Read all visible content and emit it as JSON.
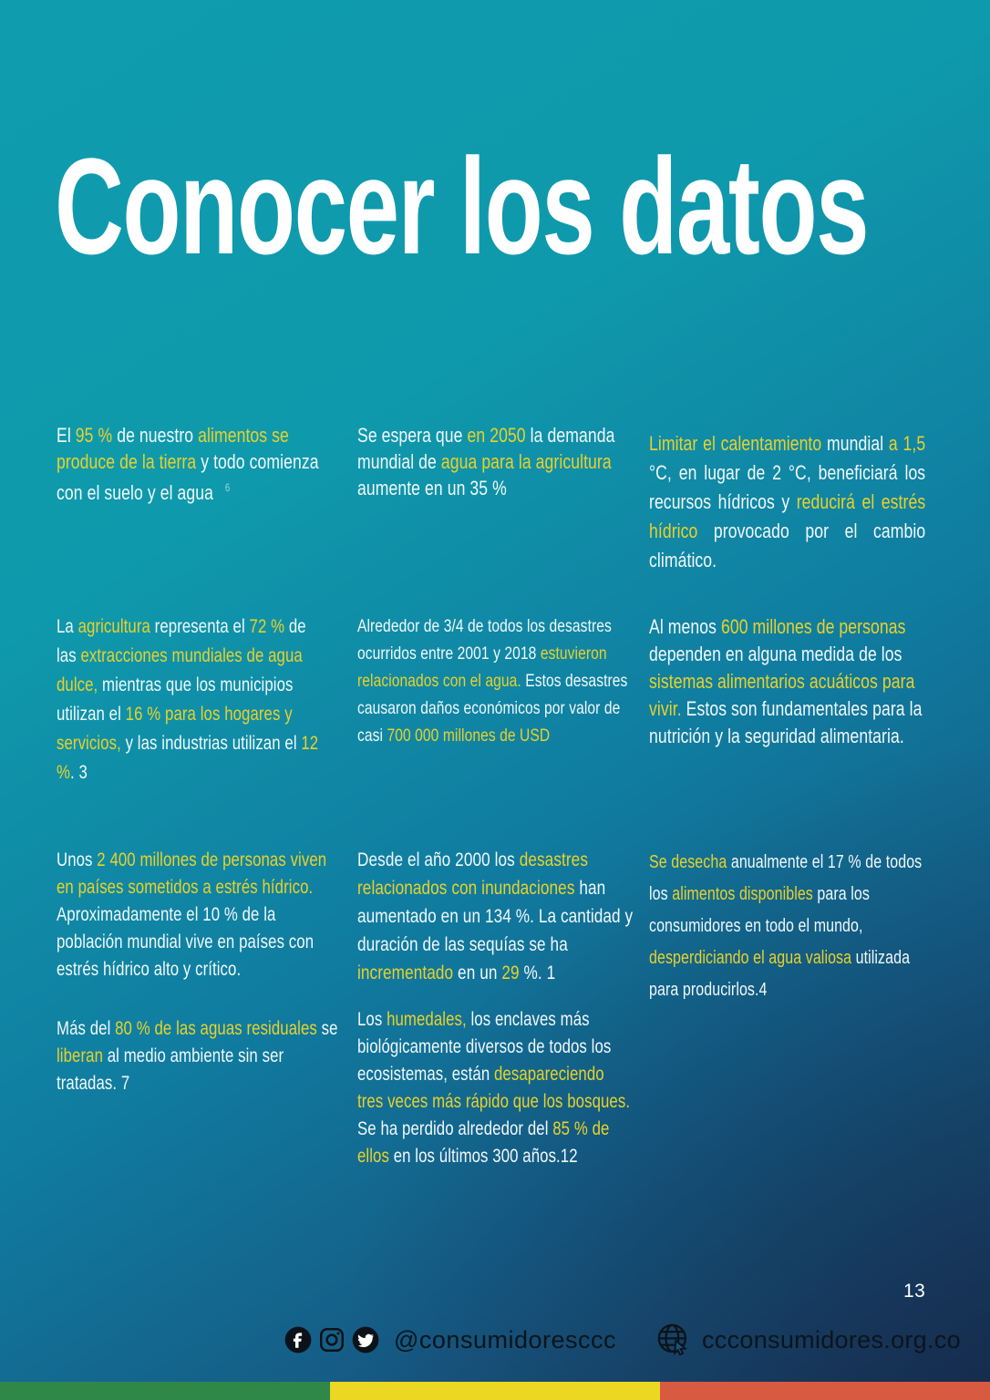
{
  "page": {
    "title": "Conocer los datos",
    "page_number": "13"
  },
  "colors": {
    "highlight": "#e8d22b",
    "bg_top": "#0f9cae",
    "bg_bottom": "#1e3c62",
    "stripe_green": "#2f8748",
    "stripe_yellow": "#ecd723",
    "stripe_orange": "#d85a40"
  },
  "facts": [
    {
      "name": "food-from-land",
      "segments": [
        {
          "t": "El ",
          "h": false
        },
        {
          "t": "95 %",
          "h": true
        },
        {
          "t": " de nuestro ",
          "h": false
        },
        {
          "t": "alimentos se produce de la tierra",
          "h": true
        },
        {
          "t": " y todo comienza con el suelo y el agua",
          "h": false
        },
        {
          "t": "6",
          "h": false,
          "sup": true
        }
      ]
    },
    {
      "name": "water-demand-2050",
      "segments": [
        {
          "t": "Se espera que ",
          "h": false
        },
        {
          "t": "en 2050",
          "h": true
        },
        {
          "t": " la demanda mundial de ",
          "h": false
        },
        {
          "t": "agua para la agricultura",
          "h": true
        },
        {
          "t": " aumente en un 35 %",
          "h": false
        }
      ]
    },
    {
      "name": "limit-warming",
      "segments": [
        {
          "t": "Limitar el calentamiento",
          "h": true
        },
        {
          "t": " mundial ",
          "h": false
        },
        {
          "t": "a 1,5",
          "h": true
        },
        {
          "t": " °C, en lugar de 2 °C, beneficiará los recursos hídricos y ",
          "h": false
        },
        {
          "t": "reducirá el estrés hídrico",
          "h": true
        },
        {
          "t": " provocado por el cambio climático.",
          "h": false
        }
      ]
    },
    {
      "name": "agriculture-withdrawals",
      "segments": [
        {
          "t": "La ",
          "h": false
        },
        {
          "t": "agricultura",
          "h": true
        },
        {
          "t": " representa el ",
          "h": false
        },
        {
          "t": "72 %",
          "h": true
        },
        {
          "t": " de las ",
          "h": false
        },
        {
          "t": "extracciones mundiales de agua dulce,",
          "h": true
        },
        {
          "t": " mientras que los municipios utilizan el ",
          "h": false
        },
        {
          "t": "16 % para los hogares y servicios,",
          "h": true
        },
        {
          "t": " y las industrias utilizan el ",
          "h": false
        },
        {
          "t": "12 %",
          "h": true
        },
        {
          "t": ". 3",
          "h": false
        }
      ]
    },
    {
      "name": "water-related-disasters",
      "segments": [
        {
          "t": "Alrededor de 3/4 de todos los desastres ocurridos entre 2001 y 2018 ",
          "h": false
        },
        {
          "t": "estuvieron relacionados con el agua.",
          "h": true
        },
        {
          "t": " Estos desastres causaron daños económicos por valor de casi ",
          "h": false
        },
        {
          "t": "700 000 millones de USD",
          "h": true
        }
      ]
    },
    {
      "name": "aquatic-food-systems",
      "segments": [
        {
          "t": "Al menos ",
          "h": false
        },
        {
          "t": "600 millones de personas",
          "h": true
        },
        {
          "t": " dependen en alguna medida de los ",
          "h": false
        },
        {
          "t": "sistemas alimentarios acuáticos para vivir.",
          "h": true
        },
        {
          "t": " Estos son fundamentales para la nutrición y la seguridad alimentaria.",
          "h": false
        }
      ]
    },
    {
      "name": "water-stress-population",
      "segments": [
        {
          "t": "Unos ",
          "h": false
        },
        {
          "t": "2 400 millones de personas viven en países sometidos a estrés hídrico.",
          "h": true
        },
        {
          "t": " Aproximadamente el 10 % de la población mundial vive en países con estrés hídrico alto y crítico.",
          "h": false
        }
      ]
    },
    {
      "name": "untreated-wastewater",
      "segments": [
        {
          "t": "Más del ",
          "h": false
        },
        {
          "t": "80 % de las aguas residuales",
          "h": true
        },
        {
          "t": " se ",
          "h": false
        },
        {
          "t": "liberan",
          "h": true
        },
        {
          "t": " al medio ambiente sin ser tratadas. 7",
          "h": false
        }
      ]
    },
    {
      "name": "flood-disasters-increase",
      "segments": [
        {
          "t": "Desde el año 2000 los ",
          "h": false
        },
        {
          "t": "desastres relacionados con inundaciones",
          "h": true
        },
        {
          "t": " han aumentado en un 134 %. La cantidad y duración de las sequías se ha ",
          "h": false
        },
        {
          "t": "incrementado",
          "h": true
        },
        {
          "t": " en un ",
          "h": false
        },
        {
          "t": "29",
          "h": true
        },
        {
          "t": " %. 1",
          "h": false
        }
      ]
    },
    {
      "name": "wetlands-disappearing",
      "segments": [
        {
          "t": "Los ",
          "h": false
        },
        {
          "t": "humedales,",
          "h": true
        },
        {
          "t": " los enclaves más biológicamente diversos de todos los ecosistemas, están ",
          "h": false
        },
        {
          "t": "desapareciendo tres veces más rápido que los bosques.",
          "h": true
        },
        {
          "t": " Se ha perdido alrededor del ",
          "h": false
        },
        {
          "t": "85 % de ellos",
          "h": true
        },
        {
          "t": " en los últimos 300 años.12",
          "h": false
        }
      ]
    },
    {
      "name": "food-waste",
      "segments": [
        {
          "t": "Se desecha",
          "h": true
        },
        {
          "t": " anualmente el 17 % de todos los ",
          "h": false
        },
        {
          "t": "alimentos disponibles",
          "h": true
        },
        {
          "t": " para los consumidores en todo el mundo, ",
          "h": false
        },
        {
          "t": "desperdiciando el agua valiosa",
          "h": true
        },
        {
          "t": " utilizada para producirlos.4",
          "h": false
        }
      ]
    }
  ],
  "footer": {
    "social_handle": "@consumidoresccc",
    "website": "ccconsumidores.org.co",
    "icons": [
      "facebook-icon",
      "instagram-icon",
      "twitter-icon",
      "globe-cursor-icon"
    ]
  }
}
